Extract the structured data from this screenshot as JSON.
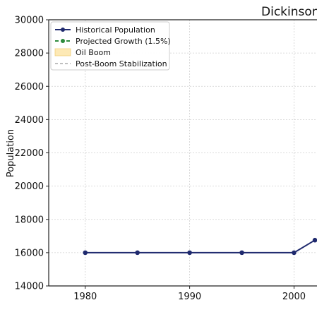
{
  "chart_data": {
    "type": "line",
    "title": "Dickinson",
    "xlabel": "",
    "ylabel": "Population",
    "xlim": [
      1976.5,
      2002.2
    ],
    "ylim": [
      14000,
      30000
    ],
    "x_ticks": [
      1980,
      1990,
      2000
    ],
    "y_ticks": [
      14000,
      16000,
      18000,
      20000,
      22000,
      24000,
      26000,
      28000,
      30000
    ],
    "grid": true,
    "legend_position": "top-left",
    "series": [
      {
        "name": "Historical Population",
        "color": "#1f2a6e",
        "marker": "circle",
        "x": [
          1980,
          1985,
          1990,
          1995,
          2000,
          2002
        ],
        "y": [
          16000,
          16000,
          16000,
          16000,
          16000,
          16750
        ]
      }
    ],
    "legend": [
      {
        "label": "Historical Population",
        "style": "line-marker",
        "color": "#1f2a6e"
      },
      {
        "label": "Projected Growth (1.5%)",
        "style": "dashed-marker",
        "color": "#2e8b3e"
      },
      {
        "label": "Oil Boom",
        "style": "patch",
        "color": "#fde9b5"
      },
      {
        "label": "Post-Boom Stabilization",
        "style": "dashed",
        "color": "#999999"
      }
    ]
  }
}
